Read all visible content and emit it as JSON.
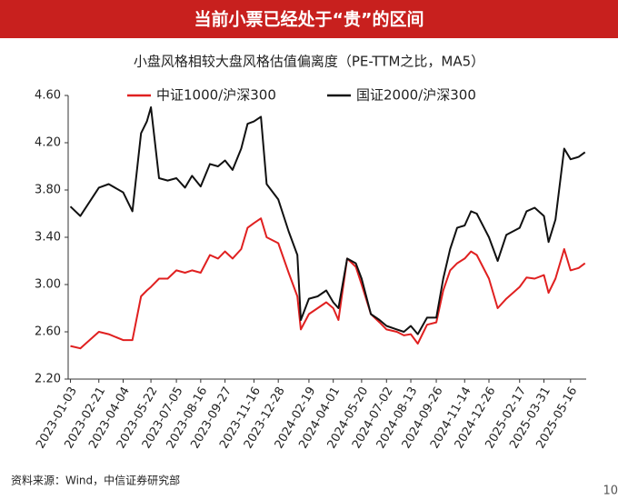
{
  "header": {
    "title": "当前小票已经处于“贵”的区间"
  },
  "chart_data": {
    "type": "line",
    "title": "小盘风格相较大盘风格估值偏离度（PE-TTM之比，MA5）",
    "x": [
      "2023-01-03",
      "2023-01-20",
      "2023-02-21",
      "2023-03-10",
      "2023-04-04",
      "2023-04-20",
      "2023-05-05",
      "2023-05-15",
      "2023-05-22",
      "2023-06-05",
      "2023-06-20",
      "2023-07-05",
      "2023-07-20",
      "2023-08-01",
      "2023-08-16",
      "2023-09-01",
      "2023-09-15",
      "2023-09-27",
      "2023-10-10",
      "2023-10-25",
      "2023-11-05",
      "2023-11-16",
      "2023-11-28",
      "2023-12-08",
      "2023-12-28",
      "2024-01-15",
      "2024-01-30",
      "2024-02-05",
      "2024-02-19",
      "2024-03-05",
      "2024-03-20",
      "2024-04-01",
      "2024-04-10",
      "2024-04-25",
      "2024-05-10",
      "2024-05-20",
      "2024-06-05",
      "2024-06-20",
      "2024-07-02",
      "2024-07-20",
      "2024-08-01",
      "2024-08-13",
      "2024-08-25",
      "2024-09-10",
      "2024-09-26",
      "2024-10-08",
      "2024-10-20",
      "2024-11-01",
      "2024-11-14",
      "2024-11-25",
      "2024-12-05",
      "2024-12-26",
      "2025-01-10",
      "2025-01-25",
      "2025-02-17",
      "2025-03-01",
      "2025-03-15",
      "2025-03-31",
      "2025-04-08",
      "2025-04-20",
      "2025-05-05",
      "2025-05-16",
      "2025-05-30",
      "2025-06-10"
    ],
    "series": [
      {
        "name": "中证1000/沪深300",
        "color": "#e02020",
        "values": [
          2.48,
          2.46,
          2.6,
          2.58,
          2.53,
          2.53,
          2.9,
          2.95,
          2.98,
          3.05,
          3.05,
          3.12,
          3.1,
          3.12,
          3.1,
          3.25,
          3.22,
          3.28,
          3.22,
          3.3,
          3.48,
          3.52,
          3.56,
          3.4,
          3.35,
          3.1,
          2.9,
          2.62,
          2.75,
          2.8,
          2.85,
          2.8,
          2.7,
          3.22,
          3.15,
          3.0,
          2.75,
          2.68,
          2.62,
          2.6,
          2.57,
          2.58,
          2.5,
          2.66,
          2.68,
          2.95,
          3.12,
          3.18,
          3.22,
          3.28,
          3.25,
          3.05,
          2.8,
          2.88,
          2.98,
          3.06,
          3.05,
          3.08,
          2.93,
          3.05,
          3.3,
          3.12,
          3.14,
          3.18
        ]
      },
      {
        "name": "国证2000/沪深300",
        "color": "#111111",
        "values": [
          3.66,
          3.58,
          3.82,
          3.85,
          3.78,
          3.62,
          4.28,
          4.38,
          4.5,
          3.9,
          3.88,
          3.9,
          3.82,
          3.92,
          3.83,
          4.02,
          4.0,
          4.05,
          3.97,
          4.15,
          4.36,
          4.38,
          4.42,
          3.85,
          3.72,
          3.45,
          3.25,
          2.7,
          2.88,
          2.9,
          2.95,
          2.85,
          2.8,
          3.22,
          3.18,
          3.05,
          2.75,
          2.7,
          2.65,
          2.62,
          2.6,
          2.65,
          2.58,
          2.72,
          2.72,
          3.05,
          3.3,
          3.48,
          3.5,
          3.62,
          3.6,
          3.4,
          3.2,
          3.42,
          3.48,
          3.62,
          3.65,
          3.58,
          3.36,
          3.55,
          4.15,
          4.06,
          4.08,
          4.12
        ]
      }
    ],
    "xlim": [
      "2022-12-30",
      "2025-06-12"
    ],
    "xticks": [
      "2023-01-03",
      "2023-02-21",
      "2023-04-04",
      "2023-05-22",
      "2023-07-05",
      "2023-08-16",
      "2023-09-27",
      "2023-11-16",
      "2023-12-28",
      "2024-02-19",
      "2024-04-01",
      "2024-05-20",
      "2024-07-02",
      "2024-08-13",
      "2024-09-26",
      "2024-11-14",
      "2024-12-26",
      "2025-02-17",
      "2025-03-31",
      "2025-05-16"
    ],
    "ylim": [
      2.2,
      4.6
    ],
    "yticks": [
      {
        "value": 2.2,
        "label": "2.20"
      },
      {
        "value": 2.6,
        "label": "2.60"
      },
      {
        "value": 3.0,
        "label": "3.00"
      },
      {
        "value": 3.4,
        "label": "3.40"
      },
      {
        "value": 3.8,
        "label": "3.80"
      },
      {
        "value": 4.2,
        "label": "4.20"
      },
      {
        "value": 4.6,
        "label": "4.60"
      }
    ]
  },
  "footer": {
    "source": "资料来源：Wind，中信证券研究部",
    "page": "10"
  }
}
